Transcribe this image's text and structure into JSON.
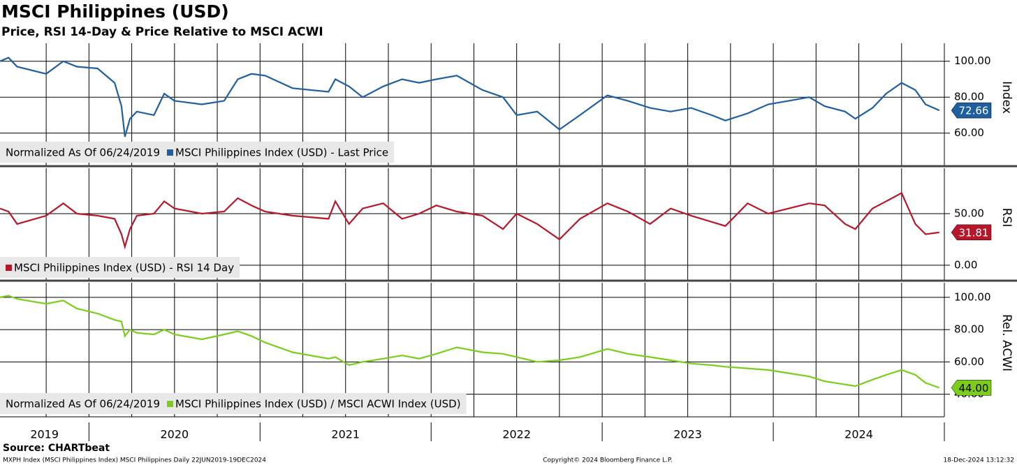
{
  "header": {
    "title": "MSCI Philippines (USD)",
    "subtitle": "Price, RSI 14-Day & Price Relative to MSCI ACWI"
  },
  "x_axis": {
    "x": [
      2019.48,
      2019.53,
      2019.58,
      2019.75,
      2019.85,
      2019.93,
      2020.05,
      2020.15,
      2020.19,
      2020.21,
      2020.24,
      2020.28,
      2020.38,
      2020.44,
      2020.5,
      2020.66,
      2020.79,
      2020.87,
      2020.95,
      2021.03,
      2021.19,
      2021.4,
      2021.44,
      2021.52,
      2021.6,
      2021.72,
      2021.83,
      2021.93,
      2022.03,
      2022.15,
      2022.3,
      2022.42,
      2022.5,
      2022.62,
      2022.75,
      2022.87,
      2023.03,
      2023.15,
      2023.28,
      2023.4,
      2023.52,
      2023.64,
      2023.72,
      2023.85,
      2023.97,
      2024.09,
      2024.21,
      2024.3,
      2024.42,
      2024.48,
      2024.58,
      2024.66,
      2024.75,
      2024.83,
      2024.89,
      2024.97
    ],
    "xlim": [
      2019.48,
      2025.0
    ],
    "xticks": [
      {
        "value": 2019.74,
        "label": "2019"
      },
      {
        "value": 2020.5,
        "label": "2020"
      },
      {
        "value": 2021.5,
        "label": "2021"
      },
      {
        "value": 2022.5,
        "label": "2022"
      },
      {
        "value": 2023.5,
        "label": "2023"
      },
      {
        "value": 2024.5,
        "label": "2024"
      }
    ],
    "year_ticks": [
      2020,
      2021,
      2022,
      2023,
      2024,
      2025
    ],
    "xgrid": [
      2019.75,
      2020.0,
      2020.25,
      2020.5,
      2020.75,
      2021.0,
      2021.25,
      2021.5,
      2021.75,
      2022.0,
      2022.25,
      2022.5,
      2022.75,
      2023.0,
      2023.25,
      2023.5,
      2023.75,
      2024.0,
      2024.25,
      2024.5,
      2024.75,
      2025.0
    ]
  },
  "chart_data": [
    {
      "type": "line",
      "y_axis_title": "Index",
      "note": "Normalized As Of 06/24/2019",
      "ylim": [
        42,
        110
      ],
      "yticks": [
        {
          "value": 60,
          "label": "60.00"
        },
        {
          "value": 80,
          "label": "80.00"
        },
        {
          "value": 100,
          "label": "100.00"
        }
      ],
      "grid": true,
      "series": [
        {
          "name": "MSCI Philippines Index (USD) - Last Price",
          "color": "#1f5fa0",
          "label_text_color": "#ffffff",
          "last_value_label": "72.66",
          "values": [
            100,
            102,
            97,
            93,
            100,
            97,
            96,
            88,
            75,
            58,
            68,
            72,
            70,
            82,
            78,
            76,
            78,
            90,
            93,
            92,
            85,
            83,
            90,
            86,
            80,
            86,
            90,
            88,
            90,
            92,
            84,
            80,
            70,
            72,
            62,
            70,
            81,
            78,
            74,
            72,
            74,
            70,
            67,
            71,
            76,
            78,
            80,
            75,
            72,
            68,
            74,
            82,
            88,
            84,
            76,
            72.66
          ]
        }
      ]
    },
    {
      "type": "line",
      "y_axis_title": "RSI",
      "ylim": [
        -15,
        94
      ],
      "yticks": [
        {
          "value": 0,
          "label": "0.00"
        },
        {
          "value": 50,
          "label": "50.00"
        }
      ],
      "grid": true,
      "series": [
        {
          "name": "MSCI Philippines Index (USD) - RSI 14 Day",
          "color": "#b5172b",
          "label_text_color": "#ffffff",
          "last_value_label": "31.81",
          "values": [
            55,
            52,
            40,
            48,
            60,
            50,
            48,
            45,
            30,
            18,
            35,
            48,
            50,
            62,
            55,
            50,
            52,
            65,
            58,
            52,
            48,
            45,
            62,
            40,
            55,
            60,
            45,
            50,
            58,
            52,
            48,
            35,
            50,
            40,
            25,
            45,
            60,
            52,
            40,
            55,
            48,
            42,
            38,
            60,
            50,
            55,
            60,
            58,
            40,
            35,
            55,
            62,
            70,
            40,
            30,
            31.81
          ]
        }
      ]
    },
    {
      "type": "line",
      "y_axis_title": "Rel. ACWI",
      "note": "Normalized As Of 06/24/2019",
      "ylim": [
        26,
        109
      ],
      "yticks": [
        {
          "value": 40,
          "label": "40.00"
        },
        {
          "value": 60,
          "label": "60.00"
        },
        {
          "value": 80,
          "label": "80.00"
        },
        {
          "value": 100,
          "label": "100.00"
        }
      ],
      "grid": true,
      "series": [
        {
          "name": "MSCI Philippines Index (USD) / MSCI ACWI Index (USD)",
          "color": "#7ccc1c",
          "label_text_color": "#000000",
          "last_value_label": "44.00",
          "values": [
            100,
            101,
            99,
            96,
            98,
            93,
            90,
            86,
            85,
            76,
            80,
            78,
            77,
            80,
            77,
            74,
            77,
            79,
            76,
            72,
            66,
            62,
            63,
            58,
            60,
            62,
            64,
            62,
            65,
            69,
            66,
            65,
            63,
            60,
            61,
            63,
            68,
            65,
            63,
            61,
            59,
            58,
            57,
            56,
            55,
            53,
            51,
            48,
            46,
            45,
            49,
            52,
            55,
            52,
            47,
            44
          ]
        }
      ]
    }
  ],
  "footer": {
    "source": "Source: CHARTbeat",
    "description": "MXPH Index (MSCI Philippines Index) MSCI Philippines  Daily 22JUN2019-19DEC2024",
    "copyright": "Copyright© 2024 Bloomberg Finance L.P.",
    "timestamp": "18-Dec-2024 13:12:32"
  }
}
